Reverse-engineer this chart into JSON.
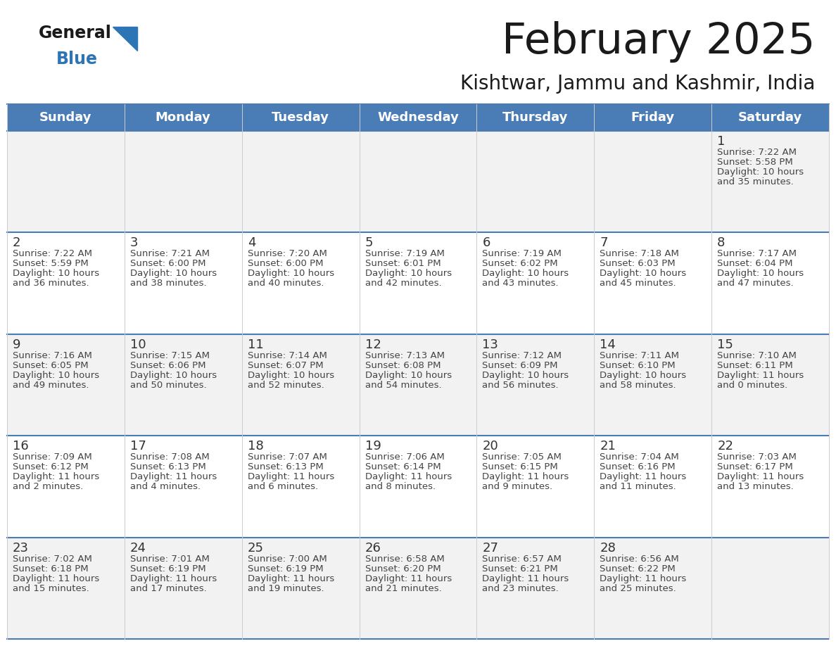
{
  "title": "February 2025",
  "subtitle": "Kishtwar, Jammu and Kashmir, India",
  "header_color": "#4A7DB5",
  "header_text_color": "#FFFFFF",
  "background_color": "#FFFFFF",
  "row_colors": [
    "#F2F2F2",
    "#FFFFFF"
  ],
  "border_color": "#4A7DB5",
  "cell_text_color": "#444444",
  "date_text_color": "#333333",
  "day_headers": [
    "Sunday",
    "Monday",
    "Tuesday",
    "Wednesday",
    "Thursday",
    "Friday",
    "Saturday"
  ],
  "days": [
    {
      "date": 1,
      "col": 6,
      "row": 0,
      "sunrise": "7:22 AM",
      "sunset": "5:58 PM",
      "daylight_h": "10 hours",
      "daylight_m": "35 minutes"
    },
    {
      "date": 2,
      "col": 0,
      "row": 1,
      "sunrise": "7:22 AM",
      "sunset": "5:59 PM",
      "daylight_h": "10 hours",
      "daylight_m": "36 minutes"
    },
    {
      "date": 3,
      "col": 1,
      "row": 1,
      "sunrise": "7:21 AM",
      "sunset": "6:00 PM",
      "daylight_h": "10 hours",
      "daylight_m": "38 minutes"
    },
    {
      "date": 4,
      "col": 2,
      "row": 1,
      "sunrise": "7:20 AM",
      "sunset": "6:00 PM",
      "daylight_h": "10 hours",
      "daylight_m": "40 minutes"
    },
    {
      "date": 5,
      "col": 3,
      "row": 1,
      "sunrise": "7:19 AM",
      "sunset": "6:01 PM",
      "daylight_h": "10 hours",
      "daylight_m": "42 minutes"
    },
    {
      "date": 6,
      "col": 4,
      "row": 1,
      "sunrise": "7:19 AM",
      "sunset": "6:02 PM",
      "daylight_h": "10 hours",
      "daylight_m": "43 minutes"
    },
    {
      "date": 7,
      "col": 5,
      "row": 1,
      "sunrise": "7:18 AM",
      "sunset": "6:03 PM",
      "daylight_h": "10 hours",
      "daylight_m": "45 minutes"
    },
    {
      "date": 8,
      "col": 6,
      "row": 1,
      "sunrise": "7:17 AM",
      "sunset": "6:04 PM",
      "daylight_h": "10 hours",
      "daylight_m": "47 minutes"
    },
    {
      "date": 9,
      "col": 0,
      "row": 2,
      "sunrise": "7:16 AM",
      "sunset": "6:05 PM",
      "daylight_h": "10 hours",
      "daylight_m": "49 minutes"
    },
    {
      "date": 10,
      "col": 1,
      "row": 2,
      "sunrise": "7:15 AM",
      "sunset": "6:06 PM",
      "daylight_h": "10 hours",
      "daylight_m": "50 minutes"
    },
    {
      "date": 11,
      "col": 2,
      "row": 2,
      "sunrise": "7:14 AM",
      "sunset": "6:07 PM",
      "daylight_h": "10 hours",
      "daylight_m": "52 minutes"
    },
    {
      "date": 12,
      "col": 3,
      "row": 2,
      "sunrise": "7:13 AM",
      "sunset": "6:08 PM",
      "daylight_h": "10 hours",
      "daylight_m": "54 minutes"
    },
    {
      "date": 13,
      "col": 4,
      "row": 2,
      "sunrise": "7:12 AM",
      "sunset": "6:09 PM",
      "daylight_h": "10 hours",
      "daylight_m": "56 minutes"
    },
    {
      "date": 14,
      "col": 5,
      "row": 2,
      "sunrise": "7:11 AM",
      "sunset": "6:10 PM",
      "daylight_h": "10 hours",
      "daylight_m": "58 minutes"
    },
    {
      "date": 15,
      "col": 6,
      "row": 2,
      "sunrise": "7:10 AM",
      "sunset": "6:11 PM",
      "daylight_h": "11 hours",
      "daylight_m": "0 minutes"
    },
    {
      "date": 16,
      "col": 0,
      "row": 3,
      "sunrise": "7:09 AM",
      "sunset": "6:12 PM",
      "daylight_h": "11 hours",
      "daylight_m": "2 minutes"
    },
    {
      "date": 17,
      "col": 1,
      "row": 3,
      "sunrise": "7:08 AM",
      "sunset": "6:13 PM",
      "daylight_h": "11 hours",
      "daylight_m": "4 minutes"
    },
    {
      "date": 18,
      "col": 2,
      "row": 3,
      "sunrise": "7:07 AM",
      "sunset": "6:13 PM",
      "daylight_h": "11 hours",
      "daylight_m": "6 minutes"
    },
    {
      "date": 19,
      "col": 3,
      "row": 3,
      "sunrise": "7:06 AM",
      "sunset": "6:14 PM",
      "daylight_h": "11 hours",
      "daylight_m": "8 minutes"
    },
    {
      "date": 20,
      "col": 4,
      "row": 3,
      "sunrise": "7:05 AM",
      "sunset": "6:15 PM",
      "daylight_h": "11 hours",
      "daylight_m": "9 minutes"
    },
    {
      "date": 21,
      "col": 5,
      "row": 3,
      "sunrise": "7:04 AM",
      "sunset": "6:16 PM",
      "daylight_h": "11 hours",
      "daylight_m": "11 minutes"
    },
    {
      "date": 22,
      "col": 6,
      "row": 3,
      "sunrise": "7:03 AM",
      "sunset": "6:17 PM",
      "daylight_h": "11 hours",
      "daylight_m": "13 minutes"
    },
    {
      "date": 23,
      "col": 0,
      "row": 4,
      "sunrise": "7:02 AM",
      "sunset": "6:18 PM",
      "daylight_h": "11 hours",
      "daylight_m": "15 minutes"
    },
    {
      "date": 24,
      "col": 1,
      "row": 4,
      "sunrise": "7:01 AM",
      "sunset": "6:19 PM",
      "daylight_h": "11 hours",
      "daylight_m": "17 minutes"
    },
    {
      "date": 25,
      "col": 2,
      "row": 4,
      "sunrise": "7:00 AM",
      "sunset": "6:19 PM",
      "daylight_h": "11 hours",
      "daylight_m": "19 minutes"
    },
    {
      "date": 26,
      "col": 3,
      "row": 4,
      "sunrise": "6:58 AM",
      "sunset": "6:20 PM",
      "daylight_h": "11 hours",
      "daylight_m": "21 minutes"
    },
    {
      "date": 27,
      "col": 4,
      "row": 4,
      "sunrise": "6:57 AM",
      "sunset": "6:21 PM",
      "daylight_h": "11 hours",
      "daylight_m": "23 minutes"
    },
    {
      "date": 28,
      "col": 5,
      "row": 4,
      "sunrise": "6:56 AM",
      "sunset": "6:22 PM",
      "daylight_h": "11 hours",
      "daylight_m": "25 minutes"
    }
  ],
  "logo_general_color": "#1a1a1a",
  "logo_blue_color": "#2E75B6",
  "logo_triangle_color": "#2E75B6",
  "title_color": "#1a1a1a",
  "subtitle_color": "#1a1a1a"
}
